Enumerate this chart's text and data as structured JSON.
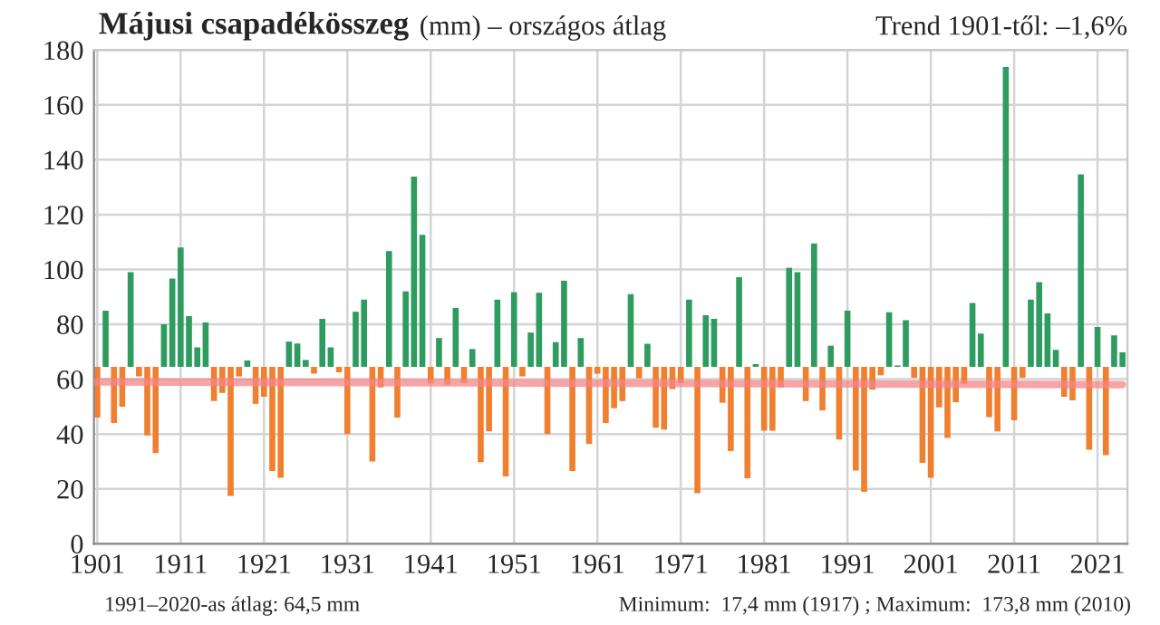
{
  "chart_data": {
    "type": "bar",
    "title": "Májusi csapadékösszeg",
    "subtitle": "(mm) – országos átlag",
    "annotations": [
      "Trend 1901-től: –1,6%",
      "1991–2020-as átlag: 64,5 mm",
      "Minimum:  17,4 mm (1917) ; Maximum:  173,8 mm (2010)"
    ],
    "x": [
      1901,
      1902,
      1903,
      1904,
      1905,
      1906,
      1907,
      1908,
      1909,
      1910,
      1911,
      1912,
      1913,
      1914,
      1915,
      1916,
      1917,
      1918,
      1919,
      1920,
      1921,
      1922,
      1923,
      1924,
      1925,
      1926,
      1927,
      1928,
      1929,
      1930,
      1931,
      1932,
      1933,
      1934,
      1935,
      1936,
      1937,
      1938,
      1939,
      1940,
      1941,
      1942,
      1943,
      1944,
      1945,
      1946,
      1947,
      1948,
      1949,
      1950,
      1951,
      1952,
      1953,
      1954,
      1955,
      1956,
      1957,
      1958,
      1959,
      1960,
      1961,
      1962,
      1963,
      1964,
      1965,
      1966,
      1967,
      1968,
      1969,
      1970,
      1971,
      1972,
      1973,
      1974,
      1975,
      1976,
      1977,
      1978,
      1979,
      1980,
      1981,
      1982,
      1983,
      1984,
      1985,
      1986,
      1987,
      1988,
      1989,
      1990,
      1991,
      1992,
      1993,
      1994,
      1995,
      1996,
      1997,
      1998,
      1999,
      2000,
      2001,
      2002,
      2003,
      2004,
      2005,
      2006,
      2007,
      2008,
      2009,
      2010,
      2011,
      2012,
      2013,
      2014,
      2015,
      2016,
      2017,
      2018,
      2019,
      2020,
      2021,
      2022,
      2023,
      2024
    ],
    "series": [
      {
        "values": [
          -18.5,
          20.5,
          -20.5,
          -14.5,
          34.5,
          -3.5,
          -25,
          -31.5,
          15.5,
          32.2,
          43.5,
          18.5,
          7.1,
          16.2,
          -12.5,
          -9.5,
          -47.1,
          -3.5,
          2.3,
          -13.5,
          -10.9,
          -38,
          -40.5,
          9.2,
          8.5,
          2.5,
          -2.5,
          17.5,
          7.1,
          -2,
          -24.5,
          20.1,
          24.5,
          -34.5,
          -7.5,
          42.2,
          -18.5,
          27.5,
          69.3,
          48.1,
          -6,
          10.5,
          -6.5,
          21.5,
          -6,
          6.5,
          -34.8,
          -23.5,
          24.5,
          -40,
          27.2,
          -3.5,
          12.5,
          27,
          -24.5,
          9,
          31.4,
          -38,
          10.5,
          -28.1,
          -2.5,
          -20.5,
          -15.1,
          -12.5,
          26.5,
          -4.2,
          8.4,
          -22.2,
          -22.9,
          -8.1,
          -6,
          24.5,
          -46.1,
          18.8,
          17.5,
          -13.1,
          -30.7,
          32.7,
          -40.6,
          1,
          -23.3,
          -23.3,
          -7.5,
          36.1,
          34.5,
          -12.5,
          45,
          -15.9,
          7.7,
          -26.5,
          20.5,
          -37.8,
          -45.6,
          -8.3,
          -3.1,
          19.9,
          0.5,
          17,
          -4,
          -35,
          -40.5,
          -14.8,
          -25.9,
          -12.9,
          -6.2,
          23.3,
          12.1,
          -18.3,
          -23.5,
          109.3,
          -19.5,
          -4,
          24.5,
          30.9,
          19.5,
          6.2,
          -10.9,
          -12.2,
          70.2,
          -30.2,
          14.5,
          -32.2,
          11.5,
          5.3
        ],
        "base": [
          64.5,
          64.5,
          64.5,
          64.5,
          64.5,
          64.5,
          64.5,
          64.5,
          64.5,
          64.5,
          64.5,
          64.5,
          64.5,
          64.5,
          64.5,
          64.5,
          64.5,
          64.5,
          64.5,
          64.5,
          64.5,
          64.5,
          64.5,
          64.5,
          64.5,
          64.5,
          64.5,
          64.5,
          64.5,
          64.5,
          64.5,
          64.5,
          64.5,
          64.5,
          64.5,
          64.5,
          64.5,
          64.5,
          64.5,
          64.5,
          64.5,
          64.5,
          64.5,
          64.5,
          64.5,
          64.5,
          64.5,
          64.5,
          64.5,
          64.5,
          64.5,
          64.5,
          64.5,
          64.5,
          64.5,
          64.5,
          64.5,
          64.5,
          64.5,
          64.5,
          64.5,
          64.5,
          64.5,
          64.5,
          64.5,
          64.5,
          64.5,
          64.5,
          64.5,
          64.5,
          64.5,
          64.5,
          64.5,
          64.5,
          64.5,
          64.5,
          64.5,
          64.5,
          64.5,
          64.5,
          64.5,
          64.5,
          64.5,
          64.5,
          64.5,
          64.5,
          64.5,
          64.5,
          64.5,
          64.5,
          64.5,
          64.5,
          64.5,
          64.5,
          64.5,
          64.5,
          64.5,
          64.5,
          64.5,
          64.5,
          64.5,
          64.5,
          64.5,
          64.5,
          64.5,
          64.5,
          64.5,
          64.5,
          64.5,
          64.5,
          64.5,
          64.5,
          64.5,
          64.5,
          64.5,
          64.5,
          64.5,
          64.5,
          64.5,
          64.5,
          64.5,
          64.5,
          64.5,
          64.5
        ],
        "colors": [
          "#f07f30",
          "#2e9b5f",
          "#f07f30",
          "#f07f30",
          "#2e9b5f",
          "#f07f30",
          "#f07f30",
          "#f07f30",
          "#2e9b5f",
          "#2e9b5f",
          "#2e9b5f",
          "#2e9b5f",
          "#2e9b5f",
          "#2e9b5f",
          "#f07f30",
          "#f07f30",
          "#f07f30",
          "#f07f30",
          "#2e9b5f",
          "#f07f30",
          "#f07f30",
          "#f07f30",
          "#f07f30",
          "#2e9b5f",
          "#2e9b5f",
          "#2e9b5f",
          "#f07f30",
          "#2e9b5f",
          "#2e9b5f",
          "#f07f30",
          "#f07f30",
          "#2e9b5f",
          "#2e9b5f",
          "#f07f30",
          "#f07f30",
          "#2e9b5f",
          "#f07f30",
          "#2e9b5f",
          "#2e9b5f",
          "#2e9b5f",
          "#f07f30",
          "#2e9b5f",
          "#f07f30",
          "#2e9b5f",
          "#f07f30",
          "#2e9b5f",
          "#f07f30",
          "#f07f30",
          "#2e9b5f",
          "#f07f30",
          "#2e9b5f",
          "#f07f30",
          "#2e9b5f",
          "#2e9b5f",
          "#f07f30",
          "#2e9b5f",
          "#2e9b5f",
          "#f07f30",
          "#2e9b5f",
          "#f07f30",
          "#f07f30",
          "#f07f30",
          "#f07f30",
          "#f07f30",
          "#2e9b5f",
          "#f07f30",
          "#2e9b5f",
          "#f07f30",
          "#f07f30",
          "#f07f30",
          "#f07f30",
          "#2e9b5f",
          "#f07f30",
          "#2e9b5f",
          "#2e9b5f",
          "#f07f30",
          "#f07f30",
          "#2e9b5f",
          "#f07f30",
          "#2e9b5f",
          "#f07f30",
          "#f07f30",
          "#f07f30",
          "#2e9b5f",
          "#2e9b5f",
          "#f07f30",
          "#2e9b5f",
          "#f07f30",
          "#2e9b5f",
          "#f07f30",
          "#2e9b5f",
          "#f07f30",
          "#f07f30",
          "#f07f30",
          "#f07f30",
          "#2e9b5f",
          "#2e9b5f",
          "#2e9b5f",
          "#f07f30",
          "#f07f30",
          "#f07f30",
          "#f07f30",
          "#f07f30",
          "#f07f30",
          "#f07f30",
          "#2e9b5f",
          "#2e9b5f",
          "#f07f30",
          "#f07f30",
          "#2e9b5f",
          "#f07f30",
          "#f07f30",
          "#2e9b5f",
          "#2e9b5f",
          "#2e9b5f",
          "#2e9b5f",
          "#f07f30",
          "#f07f30",
          "#2e9b5f",
          "#f07f30",
          "#2e9b5f",
          "#f07f30",
          "#2e9b5f",
          "#2e9b5f"
        ]
      },
      {
        "type": "line",
        "x": [
          1901,
          2024
        ],
        "values": [
          59,
          58
        ],
        "color": "#f4868a"
      }
    ],
    "xlim": [
      1900.6,
      2024.6
    ],
    "xticks": [
      1901,
      1911,
      1921,
      1931,
      1941,
      1951,
      1961,
      1971,
      1981,
      1991,
      2001,
      2011,
      2021
    ],
    "ylim": [
      0,
      180
    ],
    "yticks": [
      0,
      20,
      40,
      60,
      80,
      100,
      120,
      140,
      160,
      180
    ],
    "grid": true
  }
}
